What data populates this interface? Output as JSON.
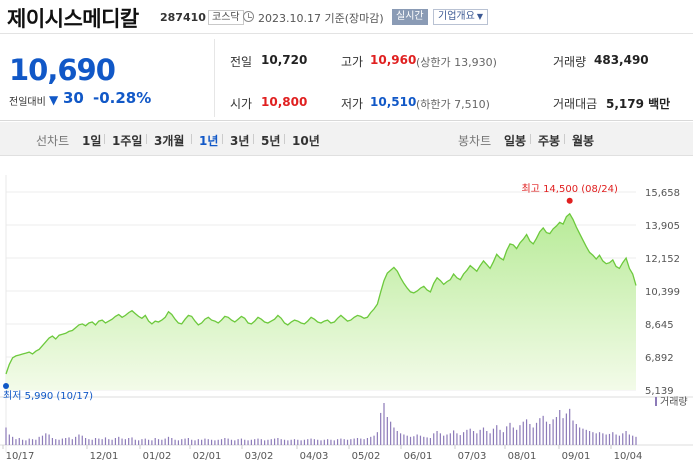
{
  "header": {
    "stock_name": "제이시스메디칼",
    "stock_code": "287410",
    "market": "코스닥",
    "date_text": "2023.10.17 기준(장마감)",
    "realtime_label": "실시간",
    "company_overview_label": "기업개요"
  },
  "price": {
    "current": "10,690",
    "change_label": "전일대비",
    "change_arrow": "▼",
    "change_value": "30",
    "change_rate": "-0.28%"
  },
  "info": {
    "prev_close_label": "전일",
    "prev_close": "10,720",
    "high_label": "고가",
    "high": "10,960",
    "upper_limit": "(상한가 13,930)",
    "volume_label": "거래량",
    "volume": "483,490",
    "open_label": "시가",
    "open": "10,800",
    "low_label": "저가",
    "low": "10,510",
    "lower_limit": "(하한가 7,510)",
    "amount_label": "거래대금",
    "amount": "5,179 백만"
  },
  "periods": {
    "line_label": "선차트",
    "line_items": [
      "1일",
      "1주일",
      "3개월",
      "1년",
      "3년",
      "5년",
      "10년"
    ],
    "active": "1년",
    "candle_label": "봉차트",
    "candle_items": [
      "일봉",
      "주봉",
      "월봉"
    ]
  },
  "colors": {
    "accent_blue": "#1158c7",
    "up_red": "#e02020",
    "line_green": "#6dc93d",
    "fill_top": "#b8eb98",
    "fill_bottom": "#f3fbe9"
  },
  "chart_data": {
    "type": "area",
    "ylim": [
      5139,
      15658
    ],
    "y_ticks": [
      "15,658",
      "13,905",
      "12,152",
      "10,399",
      "8,645",
      "6,892",
      "5,139"
    ],
    "x_labels": [
      "10/17",
      "12/01",
      "01/02",
      "02/01",
      "03/02",
      "04/03",
      "05/02",
      "06/01",
      "07/03",
      "08/01",
      "09/01",
      "10/04"
    ],
    "volume_label": "거래량",
    "high_annotation": "최고 14,500 (08/24)",
    "low_annotation": "최저 5,990 (10/17)",
    "high_value": 14500,
    "low_value": 5990,
    "values": [
      5990,
      6500,
      6850,
      6950,
      7000,
      7050,
      7100,
      7150,
      7050,
      7200,
      7300,
      7500,
      7700,
      7900,
      8000,
      7850,
      8050,
      8100,
      8150,
      8250,
      8300,
      8450,
      8600,
      8650,
      8550,
      8700,
      8750,
      8600,
      8800,
      8850,
      8700,
      8800,
      8900,
      9050,
      9150,
      9000,
      9100,
      9250,
      9350,
      9200,
      9050,
      8950,
      9100,
      8800,
      8650,
      8800,
      8750,
      8850,
      9000,
      9300,
      9150,
      8900,
      8700,
      8650,
      8900,
      9100,
      9050,
      8800,
      8600,
      8700,
      8900,
      9000,
      8850,
      8800,
      8700,
      8850,
      9050,
      9000,
      8850,
      8750,
      8900,
      9050,
      8950,
      8700,
      8650,
      8800,
      9000,
      8900,
      8750,
      8700,
      8800,
      8900,
      9100,
      8950,
      8700,
      8600,
      8750,
      8850,
      8800,
      8700,
      8650,
      8800,
      9000,
      8900,
      8750,
      8700,
      8800,
      8850,
      8700,
      8750,
      8950,
      9100,
      8950,
      8800,
      8850,
      9000,
      9100,
      9050,
      8950,
      9000,
      9250,
      9450,
      9700,
      10350,
      10950,
      11350,
      11500,
      11650,
      11450,
      11100,
      10800,
      10550,
      10350,
      10300,
      10400,
      10550,
      10650,
      10450,
      10350,
      10800,
      11100,
      10950,
      10750,
      10900,
      11000,
      11300,
      11100,
      11000,
      11300,
      11500,
      11750,
      11600,
      11450,
      11750,
      12000,
      11800,
      11600,
      11950,
      12350,
      12150,
      12050,
      12550,
      12900,
      12850,
      12650,
      12950,
      13150,
      13400,
      13050,
      12900,
      13200,
      13550,
      13750,
      13500,
      13450,
      13700,
      13850,
      14050,
      13950,
      14350,
      14500,
      14200,
      13800,
      13450,
      13100,
      12750,
      12450,
      12300,
      12100,
      12300,
      12000,
      11850,
      11900,
      12050,
      11700,
      11600,
      11900,
      12150,
      11600,
      11300,
      10690
    ],
    "volume": [
      30,
      18,
      14,
      10,
      12,
      9,
      8,
      11,
      10,
      9,
      14,
      16,
      20,
      18,
      12,
      10,
      9,
      11,
      12,
      13,
      10,
      14,
      18,
      16,
      12,
      10,
      9,
      12,
      11,
      10,
      13,
      10,
      9,
      12,
      14,
      11,
      10,
      12,
      13,
      9,
      8,
      10,
      11,
      9,
      8,
      12,
      10,
      9,
      11,
      14,
      12,
      9,
      8,
      10,
      11,
      12,
      9,
      8,
      10,
      9,
      11,
      10,
      9,
      8,
      9,
      10,
      12,
      11,
      9,
      8,
      10,
      11,
      9,
      8,
      9,
      10,
      11,
      10,
      8,
      9,
      10,
      11,
      12,
      10,
      9,
      8,
      9,
      10,
      9,
      8,
      9,
      10,
      11,
      10,
      9,
      8,
      9,
      10,
      9,
      8,
      10,
      11,
      10,
      9,
      10,
      11,
      12,
      11,
      10,
      12,
      14,
      16,
      22,
      55,
      72,
      48,
      40,
      30,
      24,
      20,
      18,
      16,
      14,
      15,
      18,
      16,
      14,
      13,
      12,
      20,
      24,
      20,
      16,
      18,
      20,
      25,
      20,
      17,
      22,
      26,
      28,
      24,
      20,
      26,
      30,
      24,
      20,
      28,
      34,
      26,
      22,
      32,
      38,
      30,
      26,
      34,
      40,
      44,
      36,
      30,
      38,
      46,
      50,
      40,
      36,
      44,
      48,
      60,
      46,
      54,
      62,
      42,
      36,
      30,
      28,
      26,
      24,
      22,
      20,
      22,
      20,
      18,
      19,
      22,
      18,
      16,
      20,
      24,
      18,
      16,
      14
    ]
  }
}
